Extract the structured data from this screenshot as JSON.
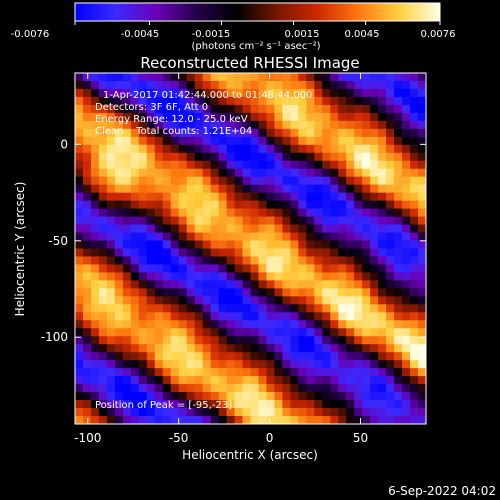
{
  "colorbar": {
    "ticks": [
      "-0.0076",
      "-0.0045",
      "-0.0015",
      "0.0015",
      "0.0045",
      "0.0076"
    ],
    "units": "(photons cm⁻² s⁻¹ asec⁻²)",
    "range": [
      -0.0076,
      0.0076
    ]
  },
  "chart_data": {
    "type": "heatmap",
    "title": "Reconstructed RHESSI Image",
    "xlabel": "Heliocentric X (arcsec)",
    "ylabel": "Heliocentric Y (arcsec)",
    "xlim": [
      -107,
      86
    ],
    "ylim": [
      -145,
      37
    ],
    "xticks": [
      -100,
      -50,
      0,
      50
    ],
    "yticks": [
      0,
      -50,
      -100
    ],
    "colormap": [
      "#0000ff",
      "#3a2aff",
      "#6a00b8",
      "#24004a",
      "#000000",
      "#781800",
      "#d02800",
      "#ff7a10",
      "#ffd040",
      "#ffffe6"
    ],
    "peak": [
      -95,
      -23
    ],
    "info_lines": [
      "1-Apr-2017 01:42:44.000 to 01:48:44.000",
      "Detectors: 3F 6F, Att 0",
      "Energy Range: 12.0 - 25.0 keV",
      "Clean    Total counts: 1.21E+04"
    ],
    "peak_label": "Position of Peak = [-95,-23]"
  },
  "footer": {
    "timestamp": "6-Sep-2022 04:02"
  }
}
